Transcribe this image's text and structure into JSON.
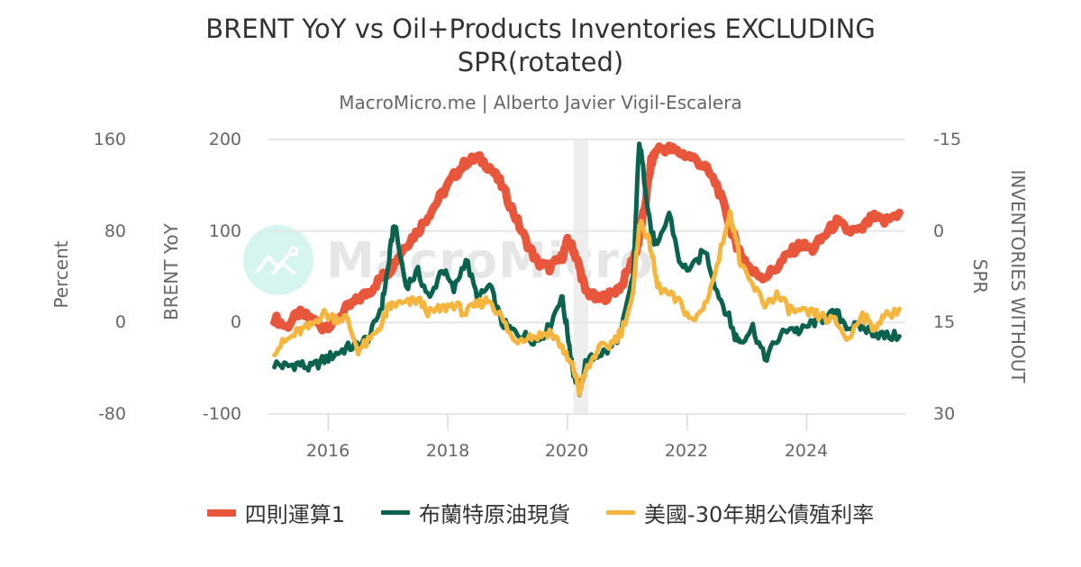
{
  "header": {
    "title_line1": "BRENT YoY vs Oil+Products Inventories EXCLUDING",
    "title_line2": "SPR(rotated)",
    "subtitle": "MacroMicro.me | Alberto Javier Vigil-Escalera"
  },
  "watermark": {
    "text": "MacroMicro",
    "icon": "macromicro-logo-icon"
  },
  "axes": {
    "left_outer": {
      "title": "Percent",
      "ticks": [
        "160",
        "80",
        "0",
        "-80"
      ]
    },
    "left_inner": {
      "title": "BRENT YoY",
      "ticks": [
        "200",
        "100",
        "0",
        "-100"
      ]
    },
    "right": {
      "title_line1": "INVENTORIES WITHOUT",
      "title_line2": "SPR",
      "ticks": [
        "-15",
        "0",
        "15",
        "30"
      ]
    },
    "x": {
      "ticks": [
        "2016",
        "2018",
        "2020",
        "2022",
        "2024"
      ]
    }
  },
  "legend": [
    {
      "label": "四則運算1",
      "color": "#e8573c"
    },
    {
      "label": "布蘭特原油現貨",
      "color": "#0b634f"
    },
    {
      "label": "美國-30年期公債殖利率",
      "color": "#f4b63f"
    }
  ],
  "colors": {
    "grid": "#e6e6e6",
    "recession_band": "#eeeeee",
    "text": "#333333",
    "muted_text": "#666666"
  },
  "chart_data": {
    "type": "line",
    "title": "BRENT YoY vs Oil+Products Inventories EXCLUDING SPR(rotated)",
    "subtitle": "MacroMicro.me | Alberto Javier Vigil-Escalera",
    "xlabel": "",
    "xlim": [
      2015.0,
      2025.65
    ],
    "x_ticks": [
      2016,
      2018,
      2020,
      2022,
      2024
    ],
    "y_axes": [
      {
        "name": "Percent",
        "position": "left-outer",
        "ylim": [
          -80,
          160
        ],
        "ticks": [
          -80,
          0,
          80,
          160
        ]
      },
      {
        "name": "BRENT YoY",
        "position": "left-inner",
        "ylim": [
          -100,
          200
        ],
        "ticks": [
          -100,
          0,
          100,
          200
        ]
      },
      {
        "name": "INVENTORIES WITHOUT SPR",
        "position": "right",
        "ylim": [
          30,
          -15
        ],
        "inverted": true,
        "ticks": [
          -15,
          0,
          15,
          30
        ]
      }
    ],
    "grid": true,
    "legend_position": "bottom",
    "recession_band": {
      "x_start": 2020.1,
      "x_end": 2020.35
    },
    "note": "Series values below are expressed on the BRENT YoY (-100..200) scale as read from pixel positions.",
    "x": [
      2015.1,
      2015.3,
      2015.5,
      2015.7,
      2015.9,
      2016.1,
      2016.3,
      2016.5,
      2016.7,
      2016.9,
      2017.0,
      2017.1,
      2017.3,
      2017.5,
      2017.7,
      2017.9,
      2018.1,
      2018.3,
      2018.5,
      2018.7,
      2018.9,
      2019.1,
      2019.3,
      2019.5,
      2019.7,
      2019.9,
      2020.0,
      2020.1,
      2020.2,
      2020.3,
      2020.5,
      2020.7,
      2020.9,
      2021.1,
      2021.2,
      2021.3,
      2021.4,
      2021.5,
      2021.7,
      2021.9,
      2022.1,
      2022.3,
      2022.5,
      2022.7,
      2022.8,
      2022.9,
      2023.1,
      2023.3,
      2023.5,
      2023.7,
      2023.9,
      2024.1,
      2024.3,
      2024.5,
      2024.7,
      2024.9,
      2025.1,
      2025.3,
      2025.55
    ],
    "series": [
      {
        "name": "四則運算1",
        "color": "#e8573c",
        "values": [
          5,
          -5,
          10,
          5,
          -5,
          0,
          15,
          25,
          35,
          50,
          55,
          65,
          85,
          100,
          120,
          140,
          160,
          175,
          180,
          170,
          150,
          120,
          90,
          65,
          60,
          70,
          88,
          80,
          60,
          35,
          25,
          30,
          40,
          70,
          90,
          130,
          175,
          190,
          190,
          185,
          180,
          170,
          150,
          110,
          90,
          75,
          55,
          50,
          60,
          75,
          85,
          80,
          95,
          110,
          100,
          100,
          115,
          110,
          120
        ]
      },
      {
        "name": "布蘭特原油現貨",
        "color": "#0b634f",
        "values": [
          -45,
          -48,
          -45,
          -50,
          -42,
          -35,
          -28,
          -25,
          -15,
          20,
          60,
          110,
          40,
          55,
          25,
          60,
          35,
          70,
          25,
          40,
          0,
          -10,
          -15,
          -20,
          -5,
          30,
          -10,
          -55,
          -75,
          -45,
          -35,
          -30,
          -10,
          50,
          200,
          150,
          100,
          80,
          120,
          60,
          60,
          80,
          35,
          5,
          -15,
          -20,
          -5,
          -40,
          -20,
          -5,
          -10,
          0,
          5,
          10,
          -5,
          -5,
          -10,
          -15,
          -15
        ]
      },
      {
        "name": "美國-30年期公債殖利率",
        "color": "#f4b63f",
        "values": [
          -30,
          -20,
          -10,
          -5,
          10,
          5,
          5,
          -30,
          -20,
          0,
          15,
          20,
          20,
          25,
          10,
          15,
          20,
          10,
          20,
          25,
          5,
          -20,
          -15,
          -15,
          -10,
          -25,
          -40,
          -50,
          -75,
          -55,
          -30,
          -25,
          -10,
          30,
          110,
          100,
          80,
          40,
          30,
          20,
          0,
          20,
          60,
          120,
          100,
          60,
          40,
          20,
          30,
          15,
          10,
          10,
          5,
          0,
          -20,
          10,
          -5,
          5,
          15
        ]
      }
    ]
  }
}
